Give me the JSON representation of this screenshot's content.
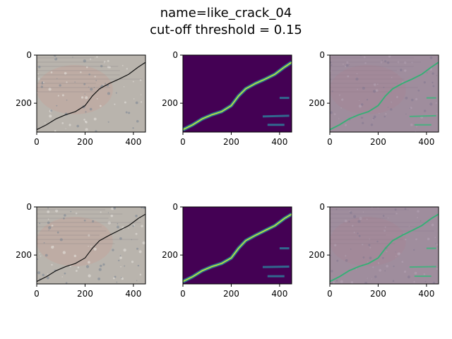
{
  "figure": {
    "title_line1": "name=like_crack_04",
    "title_line2": "cut-off threshold = 0.15"
  },
  "colors": {
    "concrete_base": "#b9b4ad",
    "concrete_dark": "#7d8794",
    "concrete_pink": "#c2a69c",
    "crack": "#111111",
    "viridis_background": "#440154",
    "viridis_mid": "#31688e",
    "viridis_high": "#35b779",
    "viridis_peak": "#fde725",
    "overlay_tint": "#8a6d8f",
    "axis": "#000000"
  },
  "chart_data": [
    {
      "type": "heatmap",
      "panel": "row1-col1",
      "content": "photo",
      "xlim": [
        0,
        450
      ],
      "ylim": [
        320,
        0
      ],
      "xticks": [
        0,
        200,
        400
      ],
      "yticks": [
        0,
        200
      ],
      "crack": [
        [
          0,
          310
        ],
        [
          40,
          290
        ],
        [
          80,
          265
        ],
        [
          120,
          248
        ],
        [
          160,
          235
        ],
        [
          200,
          210
        ],
        [
          230,
          170
        ],
        [
          260,
          140
        ],
        [
          300,
          118
        ],
        [
          340,
          100
        ],
        [
          380,
          80
        ],
        [
          420,
          50
        ],
        [
          450,
          30
        ]
      ],
      "spots": []
    },
    {
      "type": "heatmap",
      "panel": "row1-col2",
      "content": "mask",
      "xlim": [
        0,
        450
      ],
      "ylim": [
        320,
        0
      ],
      "xticks": [
        0,
        200,
        400
      ],
      "yticks": [
        0,
        200
      ],
      "crack": [
        [
          0,
          310
        ],
        [
          40,
          290
        ],
        [
          80,
          265
        ],
        [
          120,
          248
        ],
        [
          160,
          235
        ],
        [
          200,
          210
        ],
        [
          230,
          170
        ],
        [
          260,
          140
        ],
        [
          300,
          118
        ],
        [
          340,
          100
        ],
        [
          380,
          80
        ],
        [
          420,
          50
        ],
        [
          450,
          30
        ]
      ],
      "spots": [
        [
          [
            400,
            178
          ],
          [
            440,
            178
          ]
        ],
        [
          [
            330,
            255
          ],
          [
            440,
            252
          ]
        ],
        [
          [
            350,
            290
          ],
          [
            420,
            290
          ]
        ]
      ]
    },
    {
      "type": "heatmap",
      "panel": "row1-col3",
      "content": "overlay",
      "xlim": [
        0,
        450
      ],
      "ylim": [
        320,
        0
      ],
      "xticks": [
        0,
        200,
        400
      ],
      "yticks": [
        0,
        200
      ],
      "crack": [
        [
          0,
          310
        ],
        [
          40,
          290
        ],
        [
          80,
          265
        ],
        [
          120,
          248
        ],
        [
          160,
          235
        ],
        [
          200,
          210
        ],
        [
          230,
          170
        ],
        [
          260,
          140
        ],
        [
          300,
          118
        ],
        [
          340,
          100
        ],
        [
          380,
          80
        ],
        [
          420,
          50
        ],
        [
          450,
          30
        ]
      ],
      "spots": [
        [
          [
            400,
            178
          ],
          [
            440,
            178
          ]
        ],
        [
          [
            330,
            255
          ],
          [
            440,
            252
          ]
        ],
        [
          [
            350,
            290
          ],
          [
            420,
            290
          ]
        ]
      ]
    },
    {
      "type": "heatmap",
      "panel": "row2-col1",
      "content": "photo",
      "xlim": [
        0,
        450
      ],
      "ylim": [
        320,
        0
      ],
      "xticks": [
        0,
        200,
        400
      ],
      "yticks": [
        0,
        200
      ],
      "crack": [
        [
          0,
          310
        ],
        [
          40,
          290
        ],
        [
          80,
          265
        ],
        [
          120,
          248
        ],
        [
          160,
          235
        ],
        [
          200,
          212
        ],
        [
          230,
          172
        ],
        [
          260,
          140
        ],
        [
          300,
          118
        ],
        [
          340,
          98
        ],
        [
          380,
          78
        ],
        [
          420,
          48
        ],
        [
          450,
          30
        ]
      ],
      "spots": []
    },
    {
      "type": "heatmap",
      "panel": "row2-col2",
      "content": "mask",
      "xlim": [
        0,
        450
      ],
      "ylim": [
        320,
        0
      ],
      "xticks": [
        0,
        200,
        400
      ],
      "yticks": [
        0,
        200
      ],
      "crack": [
        [
          0,
          310
        ],
        [
          40,
          290
        ],
        [
          80,
          265
        ],
        [
          120,
          248
        ],
        [
          160,
          235
        ],
        [
          200,
          212
        ],
        [
          230,
          172
        ],
        [
          260,
          140
        ],
        [
          300,
          118
        ],
        [
          340,
          98
        ],
        [
          380,
          78
        ],
        [
          420,
          48
        ],
        [
          450,
          30
        ]
      ],
      "spots": [
        [
          [
            400,
            172
          ],
          [
            440,
            172
          ]
        ],
        [
          [
            330,
            250
          ],
          [
            440,
            248
          ]
        ],
        [
          [
            350,
            288
          ],
          [
            420,
            288
          ]
        ]
      ]
    },
    {
      "type": "heatmap",
      "panel": "row2-col3",
      "content": "overlay",
      "xlim": [
        0,
        450
      ],
      "ylim": [
        320,
        0
      ],
      "xticks": [
        0,
        200,
        400
      ],
      "yticks": [
        0,
        200
      ],
      "crack": [
        [
          0,
          310
        ],
        [
          40,
          290
        ],
        [
          80,
          265
        ],
        [
          120,
          248
        ],
        [
          160,
          235
        ],
        [
          200,
          212
        ],
        [
          230,
          172
        ],
        [
          260,
          140
        ],
        [
          300,
          118
        ],
        [
          340,
          98
        ],
        [
          380,
          78
        ],
        [
          420,
          48
        ],
        [
          450,
          30
        ]
      ],
      "spots": [
        [
          [
            400,
            172
          ],
          [
            440,
            172
          ]
        ],
        [
          [
            330,
            250
          ],
          [
            440,
            248
          ]
        ],
        [
          [
            350,
            288
          ],
          [
            420,
            288
          ]
        ]
      ]
    }
  ]
}
